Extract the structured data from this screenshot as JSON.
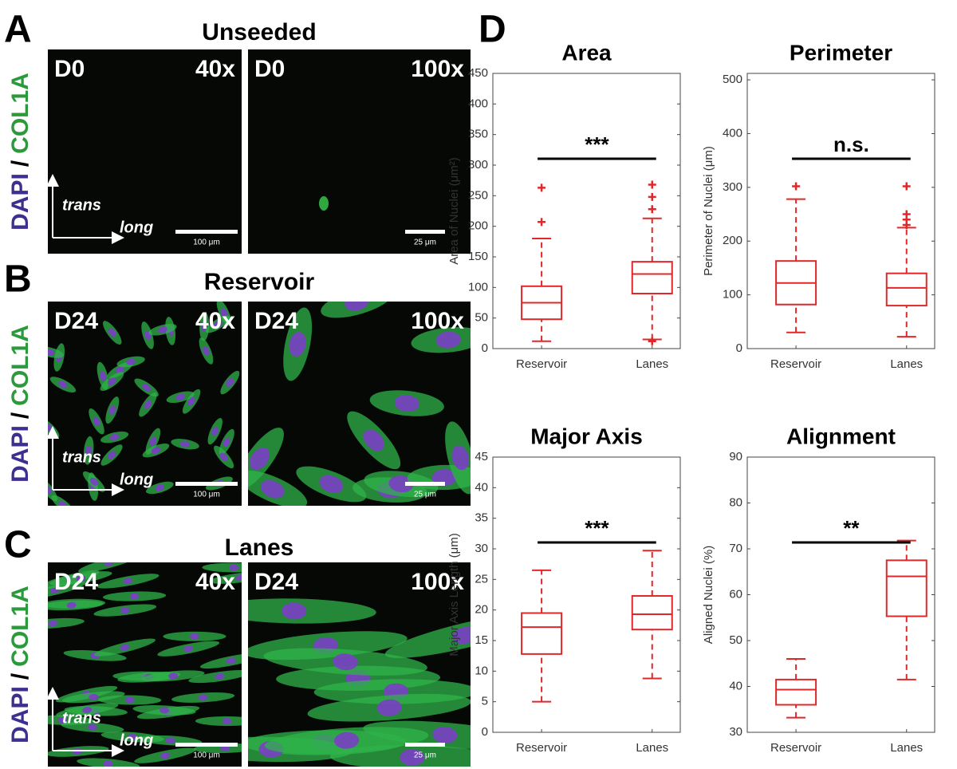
{
  "stain": {
    "dapi": "DAPI",
    "sep": "/",
    "col": "COL1A"
  },
  "axes": {
    "trans": "trans",
    "long": "long"
  },
  "panels": [
    {
      "letter": "A",
      "title": "Unseeded",
      "images": [
        {
          "day": "D0",
          "mag": "40x",
          "scale": "100 μm"
        },
        {
          "day": "D0",
          "mag": "100x",
          "scale": "25 μm"
        }
      ]
    },
    {
      "letter": "B",
      "title": "Reservoir",
      "images": [
        {
          "day": "D24",
          "mag": "40x",
          "scale": "100 μm"
        },
        {
          "day": "D24",
          "mag": "100x",
          "scale": "25 μm"
        }
      ]
    },
    {
      "letter": "C",
      "title": "Lanes",
      "images": [
        {
          "day": "D24",
          "mag": "40x",
          "scale": "100 μm"
        },
        {
          "day": "D24",
          "mag": "100x",
          "scale": "25 μm"
        }
      ]
    }
  ],
  "panel_d": {
    "letter": "D"
  },
  "chart_data": [
    {
      "type": "box",
      "title": "Area",
      "ylabel": "Area of Nuclei (μm²)",
      "categories": [
        "Reservoir",
        "Lanes"
      ],
      "color": "#e0282a",
      "boxes": [
        {
          "whisker_low": 12,
          "q1": 48,
          "median": 75,
          "q3": 102,
          "whisker_high": 180,
          "outliers": [
            207,
            263
          ]
        },
        {
          "whisker_low": 15,
          "q1": 90,
          "median": 122,
          "q3": 142,
          "whisker_high": 213,
          "outliers": [
            12,
            228,
            248,
            268
          ]
        }
      ],
      "annotation": "***",
      "ylim": [
        0,
        450
      ],
      "yticks": [
        0,
        50,
        100,
        150,
        200,
        250,
        300,
        350,
        400,
        450
      ]
    },
    {
      "type": "box",
      "title": "Perimeter",
      "ylabel": "Perimeter of Nuclei (μm)",
      "categories": [
        "Reservoir",
        "Lanes"
      ],
      "color": "#e0282a",
      "boxes": [
        {
          "whisker_low": 30,
          "q1": 82,
          "median": 122,
          "q3": 163,
          "whisker_high": 278,
          "outliers": [
            302
          ]
        },
        {
          "whisker_low": 22,
          "q1": 80,
          "median": 113,
          "q3": 140,
          "whisker_high": 225,
          "outliers": [
            230,
            240,
            250,
            302
          ]
        }
      ],
      "annotation": "n.s.",
      "ylim": [
        0,
        512
      ],
      "yticks": [
        0,
        100,
        200,
        300,
        400,
        500
      ]
    },
    {
      "type": "box",
      "title": "Major Axis",
      "ylabel": "Major Axis Length (μm)",
      "categories": [
        "Reservoir",
        "Lanes"
      ],
      "color": "#e0282a",
      "boxes": [
        {
          "whisker_low": 5,
          "q1": 12.8,
          "median": 17.2,
          "q3": 19.5,
          "whisker_high": 26.5,
          "outliers": []
        },
        {
          "whisker_low": 8.8,
          "q1": 16.8,
          "median": 19.3,
          "q3": 22.3,
          "whisker_high": 29.7,
          "outliers": []
        }
      ],
      "annotation": "***",
      "ylim": [
        0,
        45
      ],
      "yticks": [
        0,
        5,
        10,
        15,
        20,
        25,
        30,
        35,
        40,
        45
      ]
    },
    {
      "type": "box",
      "title": "Alignment",
      "ylabel": "Aligned Nuclei (%)",
      "categories": [
        "Reservoir",
        "Lanes"
      ],
      "color": "#e0282a",
      "boxes": [
        {
          "whisker_low": 33.2,
          "q1": 36,
          "median": 39.3,
          "q3": 41.5,
          "whisker_high": 46,
          "outliers": []
        },
        {
          "whisker_low": 41.5,
          "q1": 55.3,
          "median": 64,
          "q3": 67.5,
          "whisker_high": 71.8,
          "outliers": []
        }
      ],
      "annotation": "**",
      "ylim": [
        30,
        90
      ],
      "yticks": [
        30,
        40,
        50,
        60,
        70,
        80,
        90
      ]
    }
  ]
}
